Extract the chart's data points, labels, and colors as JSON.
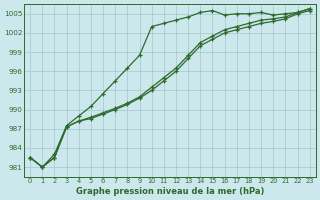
{
  "xlabel": "Graphe pression niveau de la mer (hPa)",
  "x": [
    0,
    1,
    2,
    3,
    4,
    5,
    6,
    7,
    8,
    9,
    10,
    11,
    12,
    13,
    14,
    15,
    16,
    17,
    18,
    19,
    20,
    21,
    22,
    23
  ],
  "line1": [
    982.5,
    981.0,
    983.0,
    987.5,
    989.0,
    990.5,
    992.5,
    994.5,
    996.5,
    998.5,
    1003.0,
    1003.5,
    1004.0,
    1004.5,
    1005.2,
    1005.5,
    1004.8,
    1005.0,
    1005.0,
    1005.2,
    1004.8,
    1005.0,
    1005.2,
    1005.8
  ],
  "line2": [
    982.5,
    981.0,
    982.5,
    987.3,
    988.2,
    988.8,
    989.5,
    990.2,
    991.0,
    992.0,
    993.5,
    995.0,
    996.5,
    998.5,
    1000.5,
    1001.5,
    1002.5,
    1003.0,
    1003.5,
    1004.0,
    1004.2,
    1004.5,
    1005.2,
    1005.8
  ],
  "line3": [
    982.5,
    981.0,
    982.5,
    987.3,
    988.2,
    988.6,
    989.3,
    990.0,
    990.8,
    991.8,
    993.0,
    994.5,
    996.0,
    998.0,
    1000.0,
    1001.0,
    1002.0,
    1002.5,
    1003.0,
    1003.5,
    1003.8,
    1004.2,
    1005.0,
    1005.5
  ],
  "color": "#2d6a2d",
  "bg_color": "#cce8ec",
  "grid_color": "#a0c8cc",
  "yticks": [
    981,
    984,
    987,
    990,
    993,
    996,
    999,
    1002,
    1005
  ],
  "xticks": [
    0,
    1,
    2,
    3,
    4,
    5,
    6,
    7,
    8,
    9,
    10,
    11,
    12,
    13,
    14,
    15,
    16,
    17,
    18,
    19,
    20,
    21,
    22,
    23
  ],
  "marker": "+"
}
